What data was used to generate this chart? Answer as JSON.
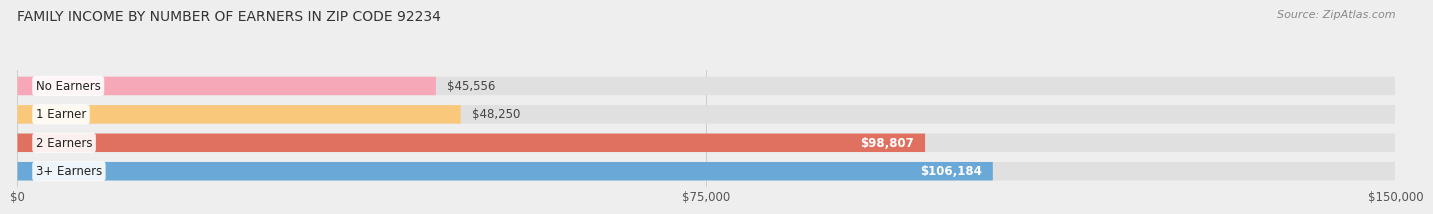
{
  "title": "FAMILY INCOME BY NUMBER OF EARNERS IN ZIP CODE 92234",
  "source": "Source: ZipAtlas.com",
  "categories": [
    "No Earners",
    "1 Earner",
    "2 Earners",
    "3+ Earners"
  ],
  "values": [
    45556,
    48250,
    98807,
    106184
  ],
  "labels": [
    "$45,556",
    "$48,250",
    "$98,807",
    "$106,184"
  ],
  "bar_colors": [
    "#f7a8b8",
    "#f9c87a",
    "#e07060",
    "#6aa8d8"
  ],
  "label_colors": [
    "#555555",
    "#555555",
    "#ffffff",
    "#ffffff"
  ],
  "background_color": "#eeeeee",
  "xlim": [
    0,
    150000
  ],
  "xticks": [
    0,
    75000,
    150000
  ],
  "xticklabels": [
    "$0",
    "$75,000",
    "$150,000"
  ],
  "title_fontsize": 10,
  "source_fontsize": 8,
  "bar_label_fontsize": 8.5,
  "cat_label_fontsize": 8.5
}
